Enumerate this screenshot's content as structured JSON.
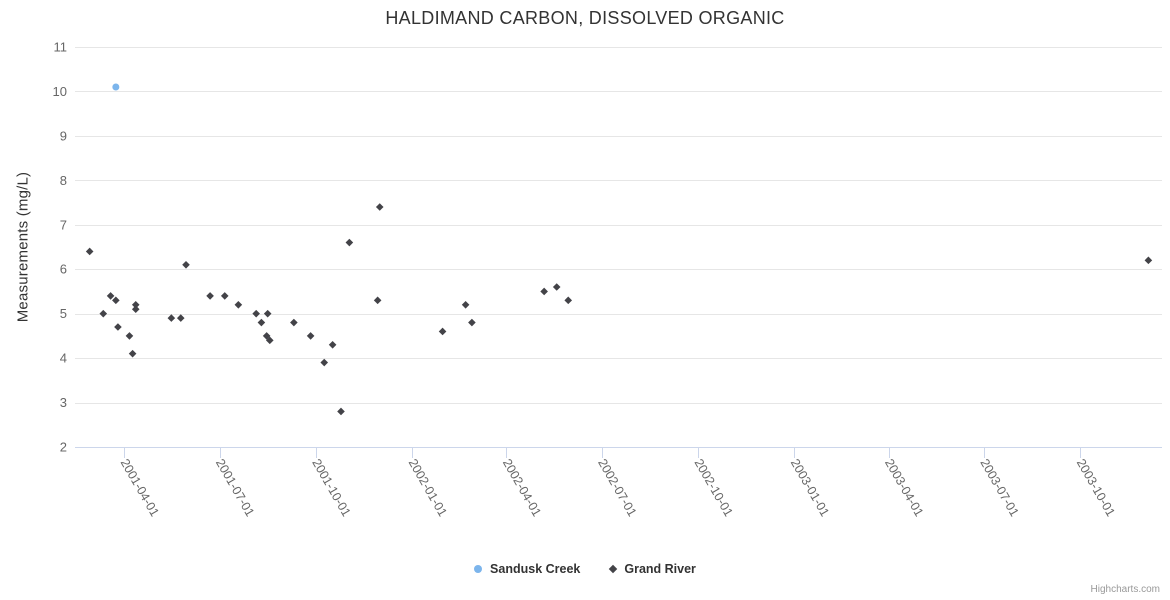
{
  "header": {
    "title": "HALDIMAND CARBON, DISSOLVED ORGANIC"
  },
  "credits": {
    "label": "Highcharts.com"
  },
  "chart_data": {
    "type": "scatter",
    "title": "HALDIMAND CARBON, DISSOLVED ORGANIC",
    "xlabel": "",
    "ylabel": "Measurements (mg/L)",
    "ylim": [
      2,
      11
    ],
    "y_ticks": [
      2,
      3,
      4,
      5,
      6,
      7,
      8,
      9,
      10,
      11
    ],
    "x_range": [
      "2001-02-13",
      "2003-12-18"
    ],
    "x_ticks": [
      "2001-04-01",
      "2001-07-01",
      "2001-10-01",
      "2002-01-01",
      "2002-04-01",
      "2002-07-01",
      "2002-10-01",
      "2003-01-01",
      "2003-04-01",
      "2003-07-01",
      "2003-10-01"
    ],
    "grid": "horizontal-only",
    "grid_color": "#e6e6e6",
    "axis_line_color": "#ccd6eb",
    "axis_label_color": "#666666",
    "legend_position": "bottom-center",
    "series": [
      {
        "name": "Sandusk Creek",
        "color": "#7cb5ec",
        "marker": "circle",
        "points": [
          [
            "2001-03-24",
            10.1
          ]
        ]
      },
      {
        "name": "Grand River",
        "color": "#434348",
        "marker": "diamond",
        "points": [
          [
            "2001-02-27",
            6.4
          ],
          [
            "2001-03-12",
            5.0
          ],
          [
            "2001-03-19",
            5.4
          ],
          [
            "2001-03-24",
            5.3
          ],
          [
            "2001-03-26",
            4.7
          ],
          [
            "2001-04-06",
            4.5
          ],
          [
            "2001-04-09",
            4.1
          ],
          [
            "2001-04-12",
            5.2
          ],
          [
            "2001-04-12",
            5.1
          ],
          [
            "2001-05-16",
            4.9
          ],
          [
            "2001-05-25",
            4.9
          ],
          [
            "2001-05-30",
            6.1
          ],
          [
            "2001-06-22",
            5.4
          ],
          [
            "2001-07-06",
            5.4
          ],
          [
            "2001-07-19",
            5.2
          ],
          [
            "2001-08-05",
            5.0
          ],
          [
            "2001-08-10",
            4.8
          ],
          [
            "2001-08-15",
            4.5
          ],
          [
            "2001-08-16",
            5.0
          ],
          [
            "2001-08-18",
            4.4
          ],
          [
            "2001-09-10",
            4.8
          ],
          [
            "2001-09-26",
            4.5
          ],
          [
            "2001-10-09",
            3.9
          ],
          [
            "2001-10-17",
            4.3
          ],
          [
            "2001-10-25",
            2.8
          ],
          [
            "2001-11-02",
            6.6
          ],
          [
            "2001-11-29",
            5.3
          ],
          [
            "2001-12-01",
            7.4
          ],
          [
            "2002-01-30",
            4.6
          ],
          [
            "2002-02-21",
            5.2
          ],
          [
            "2002-02-27",
            4.8
          ],
          [
            "2002-05-07",
            5.5
          ],
          [
            "2002-05-19",
            5.6
          ],
          [
            "2002-05-30",
            5.3
          ],
          [
            "2003-12-05",
            6.2
          ]
        ]
      }
    ]
  }
}
